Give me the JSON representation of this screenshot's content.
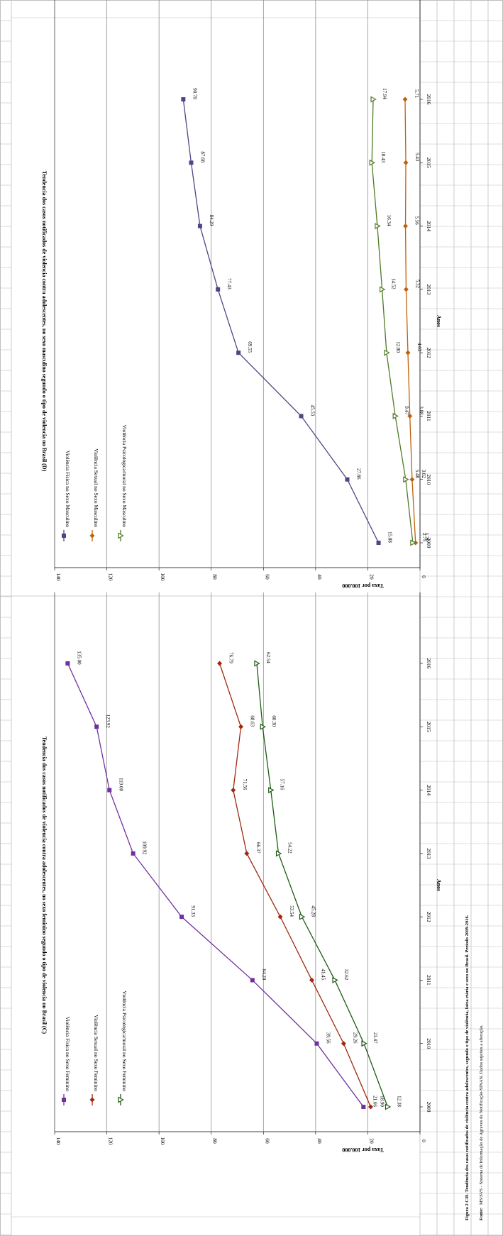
{
  "figure": {
    "caption": "Figura 2 C/D. Tendência dos casos notificados de violência contra adolescentes, segundo o tipo de violência, faixa etária e sexo no Brasil. Período 2009-2016.",
    "source_label": "Fonte:",
    "source_text": "MS/SVS - Sistema de Informação de Agravos de Notificação-SINAN. Dados sujeitos a alteração."
  },
  "colors": {
    "fisica_fem": "#7030a0",
    "sexual_fem": "#a0280f",
    "psico_fem": "#1e5a14",
    "fisica_masc": "#4f4586",
    "sexual_masc": "#c0600a",
    "psico_masc": "#4f7a25",
    "gridline": "#808080",
    "border": "#bfbfbf"
  },
  "chart_data": [
    {
      "type": "line",
      "title": "Tendencia dos casos notificados de violencia contra adolescentes, no sexo feminino segundo o tipo de violencia no Brasil (C)",
      "xlabel": "Anos",
      "ylabel": "Taxa por 100.000",
      "x": [
        2009,
        2010,
        2011,
        2012,
        2013,
        2014,
        2015,
        2016
      ],
      "ylim": [
        0,
        140
      ],
      "yticks": [
        0,
        20,
        40,
        60,
        80,
        100,
        120,
        140
      ],
      "grid": true,
      "legend_position": "top-left",
      "series": [
        {
          "name": "Violência Física no Sexo Feminino",
          "marker": "square",
          "color_key": "fisica_fem",
          "values": [
            21.66,
            39.56,
            64.2,
            91.33,
            109.92,
            119.0,
            123.92,
            135.0
          ],
          "labels": [
            "21.66",
            "39.56",
            "64.20",
            "91.33",
            "109.92",
            "119.00",
            "123.92",
            "135.00"
          ]
        },
        {
          "name": "Violência Sexual no Sexo Feminino",
          "marker": "diamond",
          "color_key": "sexual_fem",
          "values": [
            18.9,
            29.26,
            41.45,
            53.54,
            66.37,
            71.56,
            68.63,
            76.79
          ],
          "labels": [
            "18.90",
            "29.26",
            "41.45",
            "53.54",
            "66.37",
            "71.56",
            "68.63",
            "76.79"
          ]
        },
        {
          "name": "Violência Psicológica/moral no Sexo Feminino",
          "marker": "triangle",
          "color_key": "psico_fem",
          "values": [
            12.38,
            21.47,
            32.62,
            45.28,
            54.22,
            57.16,
            60.3,
            62.54
          ],
          "labels": [
            "12.38",
            "21.47",
            "32.62",
            "45.28",
            "54.22",
            "57.16",
            "60.30",
            "62.54"
          ]
        }
      ]
    },
    {
      "type": "line",
      "title": "Tendencia dos casos notificados de violencia contra adolescentes, no sexo masculino segundo o tipo de violencia no Brasil (D)",
      "xlabel": "Anos",
      "ylabel": "Taxa por 100.000",
      "x": [
        2009,
        2010,
        2011,
        2012,
        2013,
        2014,
        2015,
        2016
      ],
      "ylim": [
        0,
        140
      ],
      "yticks": [
        0,
        20,
        40,
        60,
        80,
        100,
        120,
        140
      ],
      "grid": true,
      "legend_position": "top-left",
      "series": [
        {
          "name": "Violência Física no Sexo Masculino",
          "marker": "square",
          "color_key": "fisica_masc",
          "values": [
            15.88,
            27.86,
            45.53,
            69.55,
            77.43,
            84.29,
            87.68,
            90.7
          ],
          "labels": [
            "15.88",
            "27.86",
            "45.53",
            "69.55",
            "77.43",
            "84.29",
            "87.68",
            "90.70"
          ]
        },
        {
          "name": "Violência Sexual no Sexo Masculino",
          "marker": "diamond",
          "color_key": "sexual_masc",
          "values": [
            1.7,
            3.02,
            3.88,
            4.63,
            5.32,
            5.56,
            5.43,
            5.71
          ],
          "labels": [
            "1.70",
            "3.02",
            "3.88",
            "4.63",
            "5.32",
            "5.56",
            "5.43",
            "5.71"
          ]
        },
        {
          "name": "Violência Psicológica/moral no Sexo Masculino",
          "marker": "triangle",
          "color_key": "psico_masc",
          "values": [
            2.75,
            5.48,
            9.47,
            12.8,
            14.52,
            16.34,
            18.43,
            17.94
          ],
          "labels": [
            "2.75",
            "5.48",
            "9.47",
            "12.80",
            "14.52",
            "16.34",
            "18.43",
            "17.94"
          ]
        }
      ]
    }
  ]
}
